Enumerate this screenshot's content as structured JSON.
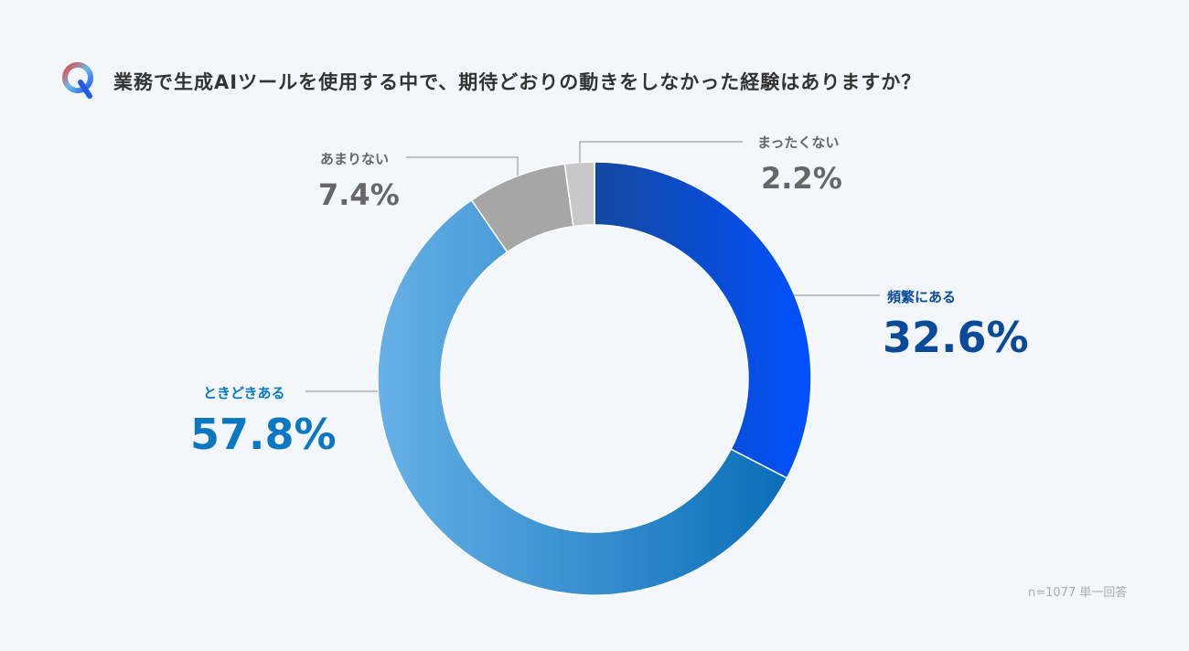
{
  "title": "業務で生成AIツールを使用する中で、期待どおりの動きをしなかった経験はありますか？",
  "note": "n=1077 単一回答",
  "chart_data": {
    "type": "pie",
    "subtype": "donut",
    "title": "業務で生成AIツールを使用する中で、期待どおりの動きをしなかった経験はありますか？",
    "categories": [
      "頻繁にある",
      "ときどきある",
      "あまりない",
      "まったくない"
    ],
    "values": [
      32.6,
      57.8,
      7.4,
      2.2
    ],
    "labels": [
      "32.6%",
      "57.8%",
      "7.4%",
      "2.2%"
    ],
    "colors": [
      "#0050ff",
      "#3a9ad8",
      "#a6a6a6",
      "#c8c8c8"
    ],
    "start": "12 o'clock, clockwise"
  }
}
